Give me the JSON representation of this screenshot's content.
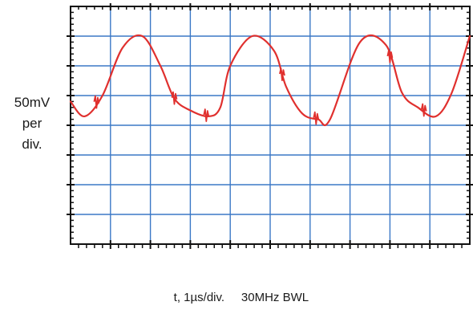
{
  "chart_data": {
    "type": "line",
    "title": "",
    "ylabel_lines": [
      "50mV",
      "per",
      "div."
    ],
    "xlabel": "t, 1µs/div.",
    "bandwidth_note": "30MHz BWL",
    "x_unit": "µs",
    "y_unit": "div",
    "x_divisions": 10,
    "y_divisions": 8,
    "xlim": [
      0,
      10
    ],
    "ylim": [
      -4,
      4
    ],
    "grid": true,
    "grid_color": "#3b78c6",
    "frame_color": "#111111",
    "trace_color": "#e0302e",
    "series": [
      {
        "x": [
          0.0,
          0.35,
          0.8,
          1.3,
          1.8,
          2.25,
          2.6,
          3.0,
          3.45,
          3.75,
          4.0,
          4.55,
          5.1,
          5.4,
          5.8,
          6.2,
          6.5,
          7.25,
          7.9,
          8.3,
          8.7,
          9.15,
          9.55,
          10.0
        ],
        "y": [
          0.8,
          0.3,
          1.0,
          2.6,
          3.0,
          2.0,
          0.9,
          0.5,
          0.3,
          0.6,
          2.0,
          3.0,
          2.5,
          1.3,
          0.4,
          0.2,
          0.2,
          2.8,
          2.7,
          1.1,
          0.6,
          0.3,
          1.1,
          3.0
        ],
        "glitches_at_x": [
          0.65,
          2.6,
          3.4,
          5.3,
          6.15,
          8.0,
          8.85
        ]
      }
    ]
  }
}
